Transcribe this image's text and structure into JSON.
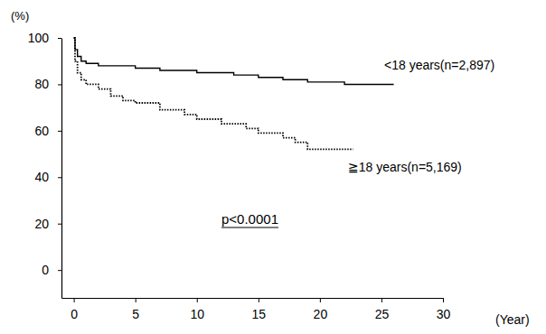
{
  "chart_data": {
    "type": "line",
    "y_label": "(%)",
    "x_label": "(Year)",
    "xlim": [
      -1,
      30
    ],
    "xticks": [
      0,
      5,
      10,
      15,
      20,
      25,
      30
    ],
    "ylim": [
      -12,
      100
    ],
    "yticks": [
      0,
      20,
      40,
      60,
      80,
      100
    ],
    "grid": false,
    "series": [
      {
        "name": "<18 years(n=2,897)",
        "color": "#000000",
        "line_style": "solid",
        "x": [
          0,
          0.1,
          0.3,
          0.6,
          1,
          2,
          3,
          5,
          7,
          10,
          13,
          15,
          17,
          19,
          22,
          26
        ],
        "values": [
          100,
          95,
          92,
          90,
          89,
          88,
          88,
          87,
          86,
          85,
          84,
          83,
          82,
          81,
          80,
          80
        ]
      },
      {
        "name": "≧18 years(n=5,169)",
        "color": "#000000",
        "line_style": "dotted",
        "x": [
          0,
          0.1,
          0.3,
          0.6,
          1,
          2,
          3,
          4,
          5,
          7,
          9,
          10,
          12,
          14,
          15,
          17,
          18,
          19,
          22.7
        ],
        "values": [
          100,
          90,
          85,
          82,
          80,
          78,
          75,
          73,
          72,
          69,
          67,
          65,
          63,
          61,
          59,
          57,
          55,
          52,
          52
        ]
      }
    ],
    "annotations": [
      {
        "text": "p<0.0001"
      }
    ]
  }
}
